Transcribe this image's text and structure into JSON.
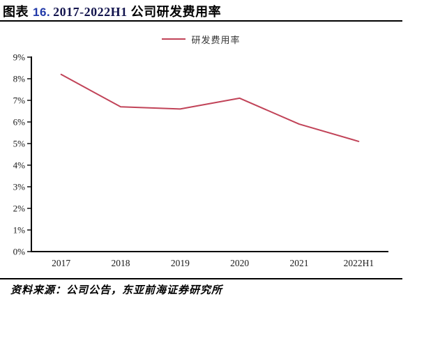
{
  "page": {
    "background": "#ffffff"
  },
  "header": {
    "title_prefix": "图表",
    "title_number": "16.",
    "title_range": "2017-2022H1",
    "title_subject": "公司研发费用率",
    "accent_number_color": "#2038a8"
  },
  "chart_data": {
    "type": "line",
    "title": "图表 16. 2017-2022H1 公司研发费用率",
    "categories": [
      "2017",
      "2018",
      "2019",
      "2020",
      "2021",
      "2022H1"
    ],
    "series": [
      {
        "name": "研发费用率",
        "color": "#C14358",
        "values": [
          8.2,
          6.7,
          6.6,
          7.1,
          5.9,
          5.1
        ]
      }
    ],
    "xlabel": "",
    "ylabel": "",
    "ylim": [
      0,
      9
    ],
    "ytick_step": 1,
    "ytick_suffix": "%",
    "grid": false,
    "legend_position": "top-center",
    "axis_color": "#000000",
    "tick_label_color": "#1a1a1a"
  },
  "footer": {
    "source_label": "资料来源：",
    "source_text": "公司公告，东亚前海证券研究所"
  }
}
